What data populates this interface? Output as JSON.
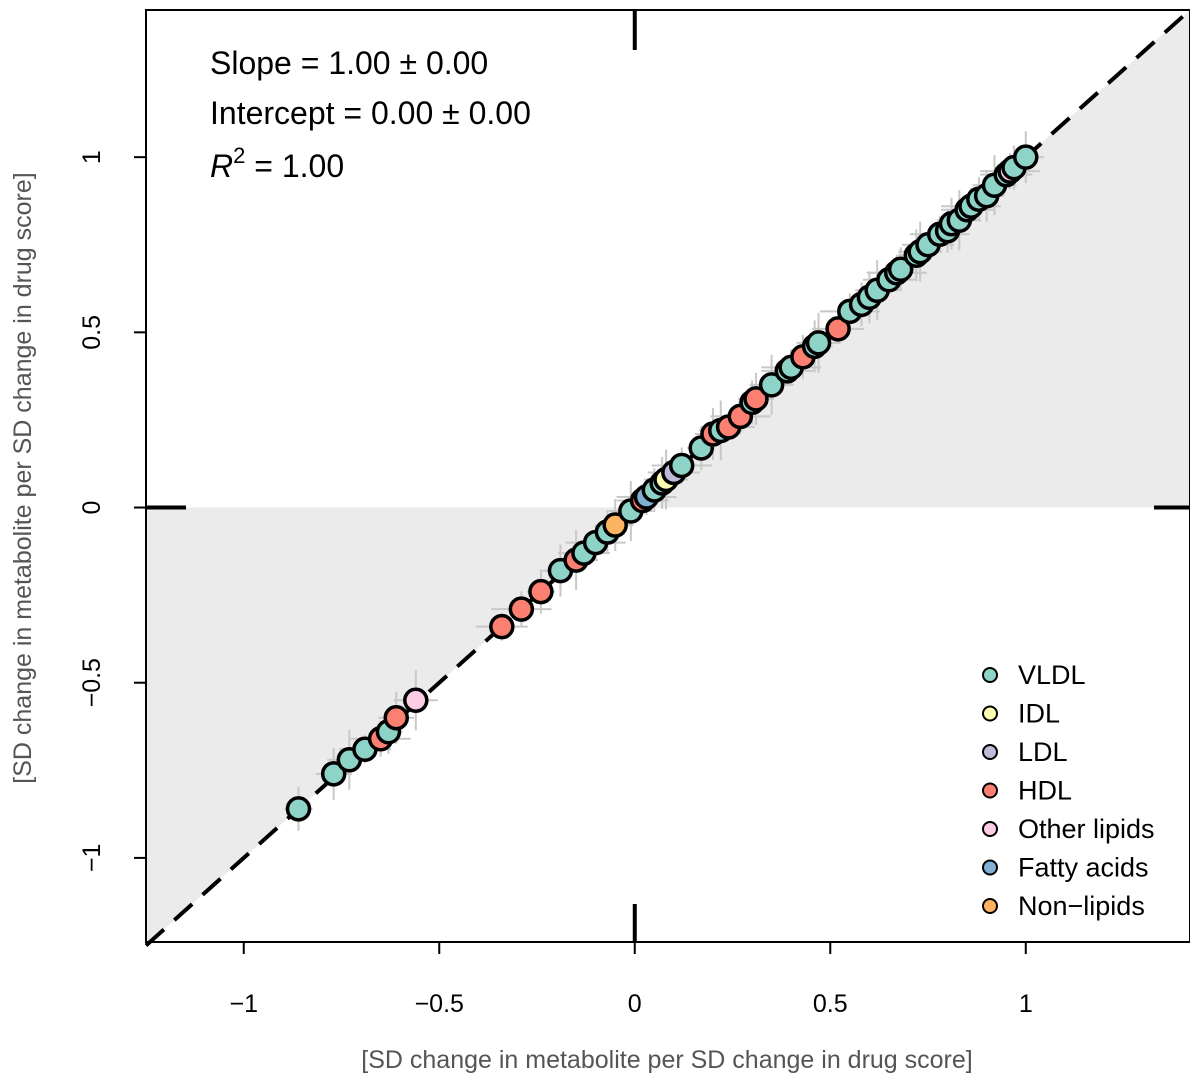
{
  "chart_data": {
    "type": "scatter",
    "xlabel": "[SD change in metabolite per SD change in drug score]",
    "ylabel": "[SD change in metabolite per SD change in drug score]",
    "xlim": [
      -1.25,
      1.42
    ],
    "ylim": [
      -1.24,
      1.42
    ],
    "x_ticks": [
      -1,
      -0.5,
      0,
      0.5,
      1
    ],
    "x_tick_labels": [
      "−1",
      "−0.5",
      "0",
      "0.5",
      "1"
    ],
    "y_ticks": [
      -1,
      -0.5,
      0,
      0.5,
      1
    ],
    "y_tick_labels": [
      "−1",
      "−0.5",
      "0",
      "0.5",
      "1"
    ],
    "annotations": {
      "slope": "Slope = 1.00 ± 0.00",
      "intercept": "Intercept = 0.00 ± 0.00",
      "r2_symbol": "R",
      "r2_exp": "2",
      "r2_value": " = 1.00"
    },
    "reference_line": {
      "slope": 1,
      "intercept": 0,
      "style": "dashed"
    },
    "shaded_quadrants": [
      "x>0,y>0 below diagonal",
      "x<0,y<0 above diagonal"
    ],
    "legend_position": "bottom-right",
    "series": [
      {
        "name": "VLDL",
        "color": "#8dd3c7",
        "points": [
          [
            1.0,
            1.0
          ],
          [
            0.97,
            0.97
          ],
          [
            0.95,
            0.95
          ],
          [
            0.92,
            0.92
          ],
          [
            0.9,
            0.89
          ],
          [
            0.88,
            0.88
          ],
          [
            0.86,
            0.86
          ],
          [
            0.85,
            0.85
          ],
          [
            0.83,
            0.82
          ],
          [
            0.81,
            0.81
          ],
          [
            0.8,
            0.79
          ],
          [
            0.78,
            0.78
          ],
          [
            0.75,
            0.75
          ],
          [
            0.73,
            0.73
          ],
          [
            0.72,
            0.72
          ],
          [
            0.68,
            0.68
          ],
          [
            0.67,
            0.67
          ],
          [
            0.65,
            0.65
          ],
          [
            0.62,
            0.62
          ],
          [
            0.6,
            0.6
          ],
          [
            0.58,
            0.58
          ],
          [
            0.55,
            0.56
          ],
          [
            0.47,
            0.47
          ],
          [
            0.46,
            0.46
          ],
          [
            0.4,
            0.4
          ],
          [
            0.39,
            0.39
          ],
          [
            0.35,
            0.35
          ],
          [
            0.3,
            0.3
          ],
          [
            0.22,
            0.22
          ],
          [
            0.17,
            0.17
          ],
          [
            0.12,
            0.12
          ],
          [
            0.07,
            0.07
          ],
          [
            0.05,
            0.05
          ],
          [
            -0.01,
            -0.01
          ],
          [
            -0.07,
            -0.07
          ],
          [
            -0.1,
            -0.1
          ],
          [
            -0.13,
            -0.13
          ],
          [
            -0.19,
            -0.18
          ],
          [
            -0.63,
            -0.64
          ],
          [
            -0.69,
            -0.69
          ],
          [
            -0.73,
            -0.72
          ],
          [
            -0.77,
            -0.76
          ],
          [
            -0.86,
            -0.86
          ]
        ]
      },
      {
        "name": "IDL",
        "color": "#ffffb3",
        "points": [
          [
            0.08,
            0.08
          ]
        ]
      },
      {
        "name": "LDL",
        "color": "#bebada",
        "points": [
          [
            0.1,
            0.1
          ]
        ]
      },
      {
        "name": "HDL",
        "color": "#fb8072",
        "points": [
          [
            0.52,
            0.51
          ],
          [
            0.43,
            0.43
          ],
          [
            0.31,
            0.31
          ],
          [
            0.27,
            0.26
          ],
          [
            0.24,
            0.23
          ],
          [
            0.2,
            0.21
          ],
          [
            0.02,
            0.02
          ],
          [
            -0.15,
            -0.15
          ],
          [
            -0.24,
            -0.24
          ],
          [
            -0.29,
            -0.29
          ],
          [
            -0.34,
            -0.34
          ],
          [
            -0.61,
            -0.6
          ],
          [
            -0.65,
            -0.66
          ]
        ]
      },
      {
        "name": "Other lipids",
        "color": "#fccde5",
        "points": [
          [
            0.96,
            0.96
          ],
          [
            -0.56,
            -0.55
          ]
        ]
      },
      {
        "name": "Fatty acids",
        "color": "#80b1d3",
        "points": [
          [
            0.03,
            0.03
          ]
        ]
      },
      {
        "name": "Non−lipids",
        "color": "#fdb462",
        "points": [
          [
            -0.05,
            -0.05
          ]
        ]
      }
    ]
  }
}
